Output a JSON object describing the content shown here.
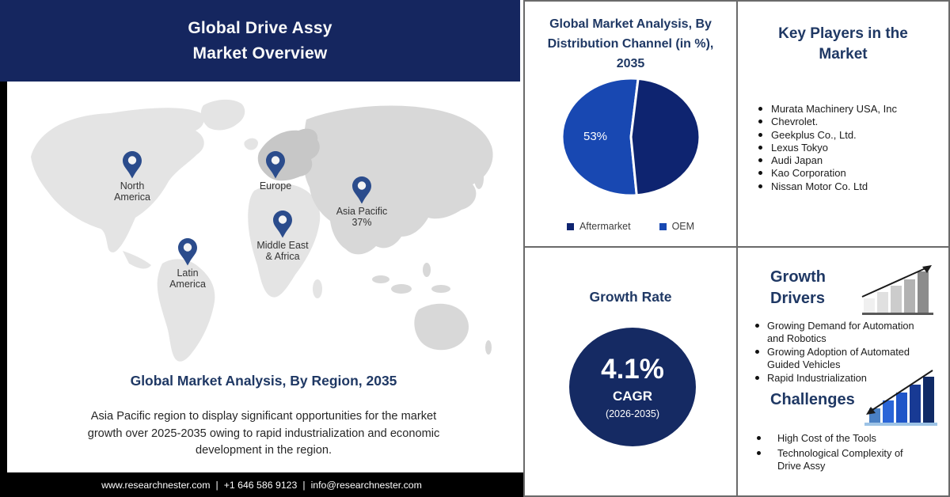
{
  "colors": {
    "header_bg": "#15265f",
    "heading_navy": "#1f3864",
    "growth_circle": "#152a63",
    "pin": "#2b4c8c",
    "border_gray": "#6a6a6a",
    "footer_bg": "#000000"
  },
  "header": {
    "title": "Global Drive Assy Market Overview"
  },
  "map": {
    "pins": [
      {
        "id": "north-america",
        "label": "North America",
        "value": ""
      },
      {
        "id": "europe",
        "label": "Europe",
        "value": ""
      },
      {
        "id": "asia-pacific",
        "label": "Asia Pacific",
        "value": "37%"
      },
      {
        "id": "middle-east-africa",
        "label": "Middle East & Africa",
        "value": ""
      },
      {
        "id": "latin-america",
        "label": "Latin America",
        "value": ""
      }
    ],
    "heading": "Global Market Analysis, By Region, 2035",
    "description": "Asia Pacific region to display significant opportunities for the market growth over 2025-2035 owing to rapid industrialization and economic development in the region."
  },
  "footer": {
    "website": "www.researchnester.com",
    "separator": "|",
    "phone": "+1 646 586 9123",
    "email": "info@researchnester.com"
  },
  "chart_data": [
    {
      "type": "pie",
      "title": "Global Market Analysis, By Distribution Channel (in %), 2035",
      "series": [
        {
          "name": "OEM",
          "value": 53,
          "label": "53%",
          "color": "#1848b2"
        },
        {
          "name": "Aftermarket",
          "value": 47,
          "label": "",
          "color": "#0e2470"
        }
      ],
      "legend": [
        {
          "label": "Aftermarket",
          "color": "#0e2470"
        },
        {
          "label": "OEM",
          "color": "#1848b2"
        }
      ],
      "legend_position": "bottom",
      "start_angle_deg": 84,
      "direction": "counterclockwise"
    },
    {
      "type": "kpi",
      "title": "Growth Rate",
      "value": "4.1%",
      "metric": "CAGR",
      "period": "(2026-2035)"
    }
  ],
  "growth_rate_panel": {
    "title": "Growth Rate",
    "value": "4.1%",
    "metric": "CAGR",
    "period": "(2026-2035)"
  },
  "key_players_panel": {
    "title": "Key Players in the Market",
    "items": [
      "Murata Machinery USA, Inc",
      "Chevrolet.",
      "Geekplus Co., Ltd.",
      "Lexus Tokyo",
      "Audi Japan",
      "Kao Corporation",
      "Nissan Motor Co. Ltd"
    ]
  },
  "growth_drivers_panel": {
    "title": "Growth Drivers",
    "items": [
      "Growing Demand for Automation and Robotics",
      "Growing Adoption of Automated Guided Vehicles",
      "Rapid Industrialization"
    ]
  },
  "challenges_panel": {
    "title": "Challenges",
    "items": [
      "High Cost of the Tools",
      "Technological Complexity of Drive Assy"
    ]
  }
}
